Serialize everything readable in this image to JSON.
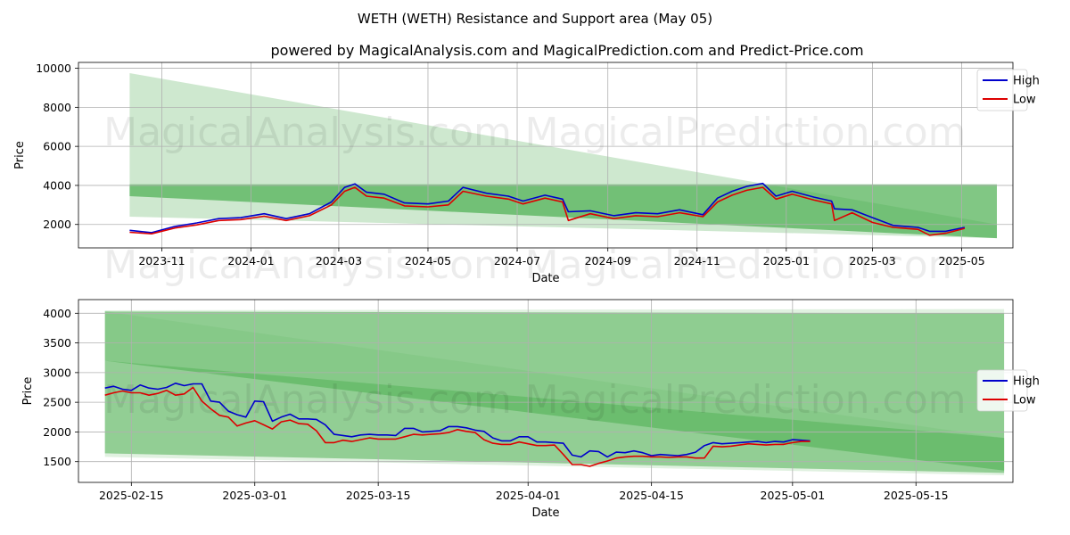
{
  "title": "WETH (WETH) Resistance and Support area (May 05)",
  "subtitle": "powered by MagicalAnalysis.com and MagicalPrediction.com and Predict-Price.com",
  "watermark": [
    "MagicalAnalysis.com",
    "MagicalPrediction.com"
  ],
  "colors": {
    "high": "#0000cc",
    "low": "#dd0000",
    "band_light": "#a5d6a7",
    "band_dark": "#4caf50"
  },
  "chart_data": [
    {
      "type": "line",
      "xlabel": "Date",
      "ylabel": "Price",
      "x_ticks": [
        "2023-11",
        "2024-01",
        "2024-03",
        "2024-05",
        "2024-07",
        "2024-09",
        "2024-11",
        "2025-01",
        "2025-03",
        "2025-05"
      ],
      "y_ticks": [
        "2000",
        "4000",
        "6000",
        "8000",
        "10000"
      ],
      "xlim": [
        "2023-09-05",
        "2025-06-05"
      ],
      "ylim": [
        800,
        10300
      ],
      "grid": true,
      "legend": "top-right",
      "bands": [
        {
          "name": "light",
          "x": [
            "2023-10-10",
            "2025-05-25"
          ],
          "upper": [
            9750,
            2000
          ],
          "lower": [
            2400,
            1300
          ]
        },
        {
          "name": "dark",
          "x": [
            "2023-10-10",
            "2025-05-25"
          ],
          "upper": [
            4050,
            4050
          ],
          "lower": [
            3450,
            1300
          ]
        }
      ],
      "x": [
        "2023-10-10",
        "2023-10-25",
        "2023-11-10",
        "2023-11-25",
        "2023-12-10",
        "2023-12-25",
        "2024-01-10",
        "2024-01-25",
        "2024-02-10",
        "2024-02-25",
        "2024-03-05",
        "2024-03-12",
        "2024-03-20",
        "2024-04-01",
        "2024-04-15",
        "2024-05-01",
        "2024-05-15",
        "2024-05-25",
        "2024-06-10",
        "2024-06-25",
        "2024-07-05",
        "2024-07-20",
        "2024-08-01",
        "2024-08-05",
        "2024-08-20",
        "2024-09-05",
        "2024-09-20",
        "2024-10-05",
        "2024-10-20",
        "2024-11-05",
        "2024-11-15",
        "2024-11-25",
        "2024-12-05",
        "2024-12-16",
        "2024-12-25",
        "2025-01-05",
        "2025-01-20",
        "2025-02-01",
        "2025-02-03",
        "2025-02-15",
        "2025-03-01",
        "2025-03-15",
        "2025-04-01",
        "2025-04-09",
        "2025-04-20",
        "2025-05-03"
      ],
      "series": [
        {
          "name": "High",
          "values": [
            1700,
            1580,
            1900,
            2080,
            2300,
            2350,
            2550,
            2300,
            2550,
            3150,
            3900,
            4080,
            3650,
            3550,
            3100,
            3050,
            3200,
            3900,
            3600,
            3450,
            3200,
            3500,
            3300,
            2650,
            2700,
            2450,
            2600,
            2550,
            2750,
            2500,
            3350,
            3700,
            3950,
            4100,
            3450,
            3700,
            3400,
            3200,
            2800,
            2750,
            2350,
            1950,
            1850,
            1650,
            1650,
            1850
          ]
        },
        {
          "name": "Low",
          "values": [
            1600,
            1520,
            1820,
            1980,
            2200,
            2250,
            2420,
            2200,
            2450,
            3000,
            3700,
            3900,
            3450,
            3350,
            2950,
            2900,
            3000,
            3700,
            3450,
            3300,
            3050,
            3350,
            3150,
            2200,
            2550,
            2300,
            2450,
            2400,
            2600,
            2400,
            3150,
            3500,
            3750,
            3900,
            3300,
            3550,
            3250,
            3050,
            2200,
            2600,
            2100,
            1850,
            1750,
            1450,
            1550,
            1800
          ]
        }
      ]
    },
    {
      "type": "line",
      "xlabel": "Date",
      "ylabel": "Price",
      "x_ticks": [
        "2025-02-15",
        "2025-03-01",
        "2025-03-15",
        "2025-04-01",
        "2025-04-15",
        "2025-05-01",
        "2025-05-15"
      ],
      "y_ticks": [
        "1500",
        "2000",
        "2500",
        "3000",
        "3500",
        "4000"
      ],
      "xlim": [
        "2025-02-09",
        "2025-05-26"
      ],
      "ylim": [
        1150,
        4230
      ],
      "grid": true,
      "legend": "center-right",
      "bands": [
        {
          "name": "light-outer",
          "x": [
            "2025-02-12",
            "2025-05-25"
          ],
          "upper": [
            4050,
            4070
          ],
          "lower": [
            1580,
            1270
          ]
        },
        {
          "name": "light-inner",
          "x": [
            "2025-02-12",
            "2025-05-25"
          ],
          "upper": [
            4030,
            1900
          ],
          "lower": [
            1640,
            1310
          ]
        },
        {
          "name": "dark",
          "x": [
            "2025-02-12",
            "2025-05-25"
          ],
          "upper": [
            4030,
            4000
          ],
          "lower": [
            3200,
            1350
          ]
        },
        {
          "name": "dark-lower",
          "x": [
            "2025-02-12",
            "2025-05-25"
          ],
          "upper": [
            3200,
            1900
          ],
          "lower": [
            1640,
            1310
          ]
        }
      ],
      "x": [
        "2025-02-12",
        "2025-02-13",
        "2025-02-14",
        "2025-02-15",
        "2025-02-16",
        "2025-02-17",
        "2025-02-18",
        "2025-02-19",
        "2025-02-20",
        "2025-02-21",
        "2025-02-22",
        "2025-02-23",
        "2025-02-24",
        "2025-02-25",
        "2025-02-26",
        "2025-02-27",
        "2025-02-28",
        "2025-03-01",
        "2025-03-02",
        "2025-03-03",
        "2025-03-04",
        "2025-03-05",
        "2025-03-06",
        "2025-03-07",
        "2025-03-08",
        "2025-03-09",
        "2025-03-10",
        "2025-03-11",
        "2025-03-12",
        "2025-03-13",
        "2025-03-14",
        "2025-03-15",
        "2025-03-16",
        "2025-03-17",
        "2025-03-18",
        "2025-03-19",
        "2025-03-20",
        "2025-03-21",
        "2025-03-22",
        "2025-03-23",
        "2025-03-24",
        "2025-03-25",
        "2025-03-26",
        "2025-03-27",
        "2025-03-28",
        "2025-03-29",
        "2025-03-30",
        "2025-03-31",
        "2025-04-01",
        "2025-04-02",
        "2025-04-03",
        "2025-04-04",
        "2025-04-05",
        "2025-04-06",
        "2025-04-07",
        "2025-04-08",
        "2025-04-09",
        "2025-04-10",
        "2025-04-11",
        "2025-04-12",
        "2025-04-13",
        "2025-04-14",
        "2025-04-15",
        "2025-04-16",
        "2025-04-17",
        "2025-04-18",
        "2025-04-19",
        "2025-04-20",
        "2025-04-21",
        "2025-04-22",
        "2025-04-23",
        "2025-04-24",
        "2025-04-25",
        "2025-04-26",
        "2025-04-27",
        "2025-04-28",
        "2025-04-29",
        "2025-04-30",
        "2025-05-01",
        "2025-05-02",
        "2025-05-03"
      ],
      "series": [
        {
          "name": "High",
          "values": [
            2740,
            2770,
            2720,
            2700,
            2790,
            2740,
            2720,
            2750,
            2820,
            2780,
            2810,
            2810,
            2520,
            2500,
            2350,
            2290,
            2250,
            2520,
            2510,
            2180,
            2250,
            2300,
            2220,
            2220,
            2210,
            2120,
            1960,
            1940,
            1920,
            1950,
            1960,
            1950,
            1950,
            1940,
            2060,
            2060,
            2000,
            2010,
            2020,
            2090,
            2090,
            2070,
            2030,
            2010,
            1900,
            1850,
            1850,
            1920,
            1920,
            1830,
            1830,
            1820,
            1810,
            1610,
            1580,
            1680,
            1670,
            1580,
            1660,
            1650,
            1680,
            1650,
            1600,
            1620,
            1610,
            1600,
            1620,
            1660,
            1770,
            1820,
            1800,
            1810,
            1820,
            1830,
            1840,
            1820,
            1840,
            1830,
            1870,
            1860,
            1850
          ]
        },
        {
          "name": "Low",
          "values": [
            2620,
            2660,
            2690,
            2660,
            2660,
            2620,
            2650,
            2700,
            2620,
            2640,
            2750,
            2520,
            2390,
            2280,
            2250,
            2100,
            2150,
            2190,
            2120,
            2050,
            2170,
            2200,
            2140,
            2130,
            2020,
            1820,
            1820,
            1860,
            1840,
            1870,
            1900,
            1880,
            1880,
            1880,
            1920,
            1960,
            1950,
            1960,
            1970,
            1990,
            2040,
            2010,
            1990,
            1870,
            1810,
            1790,
            1790,
            1830,
            1800,
            1770,
            1770,
            1780,
            1620,
            1450,
            1450,
            1420,
            1470,
            1510,
            1560,
            1580,
            1590,
            1590,
            1580,
            1580,
            1570,
            1580,
            1580,
            1560,
            1560,
            1760,
            1750,
            1760,
            1780,
            1800,
            1790,
            1780,
            1790,
            1790,
            1820,
            1840,
            1840
          ]
        }
      ]
    }
  ]
}
